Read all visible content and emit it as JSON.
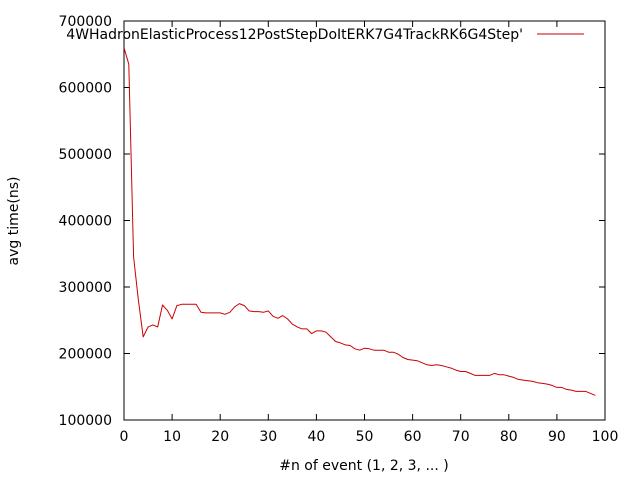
{
  "chart_data": {
    "type": "line",
    "title": "",
    "xlabel": "#n of event (1, 2, 3, ... )",
    "ylabel": "avg time(ns)",
    "xlim": [
      0,
      100
    ],
    "ylim": [
      100000,
      700000
    ],
    "xticks": [
      0,
      10,
      20,
      30,
      40,
      50,
      60,
      70,
      80,
      90,
      100
    ],
    "yticks": [
      100000,
      200000,
      300000,
      400000,
      500000,
      600000,
      700000
    ],
    "grid": false,
    "legend_position": "top-right",
    "series": [
      {
        "name": "4WHadronElasticProcess12PostStepDoItERK7G4TrackRK6G4Step'",
        "color": "#cc0000",
        "x": [
          0,
          1,
          2,
          3,
          4,
          5,
          6,
          7,
          8,
          9,
          10,
          11,
          12,
          13,
          14,
          15,
          16,
          17,
          18,
          19,
          20,
          21,
          22,
          23,
          24,
          25,
          26,
          27,
          28,
          29,
          30,
          31,
          32,
          33,
          34,
          35,
          36,
          37,
          38,
          39,
          40,
          41,
          42,
          43,
          44,
          45,
          46,
          47,
          48,
          49,
          50,
          51,
          52,
          53,
          54,
          55,
          56,
          57,
          58,
          59,
          60,
          61,
          62,
          63,
          64,
          65,
          66,
          67,
          68,
          69,
          70,
          71,
          72,
          73,
          74,
          75,
          76,
          77,
          78,
          79,
          80,
          81,
          82,
          83,
          84,
          85,
          86,
          87,
          88,
          89,
          90,
          91,
          92,
          93,
          94,
          95,
          96,
          97,
          98
        ],
        "y": [
          660000,
          635000,
          345000,
          280000,
          225000,
          240000,
          243000,
          240000,
          273000,
          265000,
          252000,
          272000,
          274000,
          274000,
          274000,
          274000,
          262000,
          261000,
          261000,
          261000,
          261000,
          259000,
          262000,
          270000,
          275000,
          272000,
          264000,
          263000,
          263000,
          262000,
          264000,
          256000,
          253000,
          257000,
          252000,
          244000,
          240000,
          237000,
          237000,
          230000,
          234000,
          234000,
          232000,
          225000,
          218000,
          216000,
          213000,
          212000,
          207000,
          205000,
          208000,
          207000,
          205000,
          205000,
          205000,
          202000,
          202000,
          199000,
          194000,
          191000,
          190000,
          189000,
          186000,
          183000,
          182000,
          183000,
          182000,
          180000,
          178000,
          175000,
          173000,
          173000,
          170000,
          167000,
          167000,
          167000,
          167000,
          170000,
          168000,
          168000,
          166000,
          164000,
          161000,
          160000,
          159000,
          158000,
          156000,
          155000,
          154000,
          152000,
          149000,
          149000,
          146000,
          145000,
          143000,
          143000,
          143000,
          140000,
          137000
        ]
      }
    ]
  }
}
